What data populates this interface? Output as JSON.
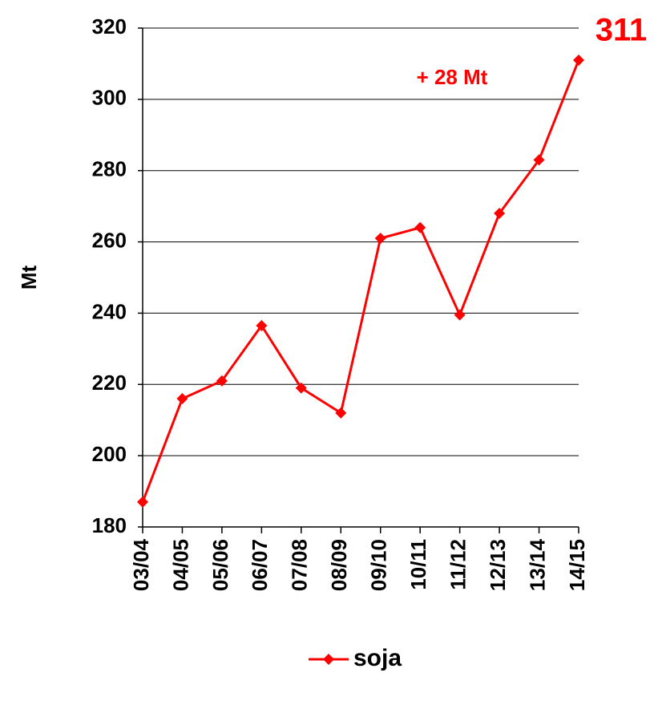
{
  "chart_data": {
    "type": "line",
    "y_label": "Mt",
    "categories": [
      "03/04",
      "04/05",
      "05/06",
      "06/07",
      "07/08",
      "08/09",
      "09/10",
      "10/11",
      "11/12",
      "12/13",
      "13/14",
      "14/15"
    ],
    "series": [
      {
        "name": "soja",
        "color": "#ff0000",
        "values": [
          187,
          216,
          221,
          236.5,
          219,
          212,
          261,
          264,
          239.5,
          268,
          283,
          311
        ]
      }
    ],
    "ylim": [
      180,
      320
    ],
    "yticks": [
      180,
      200,
      220,
      240,
      260,
      280,
      300,
      320
    ],
    "grid": true,
    "annotations": [
      {
        "text": "311"
      },
      {
        "text": "+ 28 Mt"
      }
    ],
    "legend": "bottom"
  }
}
